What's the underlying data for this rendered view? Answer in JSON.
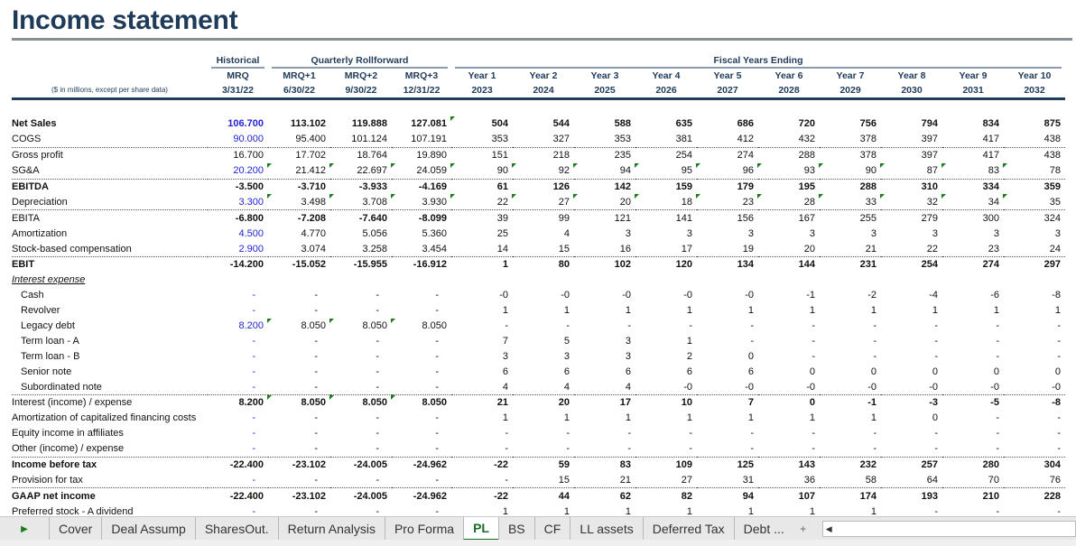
{
  "title": "Income statement",
  "header": {
    "units_note": "($ in millions, except per share data)",
    "groups": {
      "historical": "Historical",
      "quarterly": "Quarterly Rollforward",
      "fiscal": "Fiscal Years Ending"
    },
    "periods": [
      "MRQ",
      "MRQ+1",
      "MRQ+2",
      "MRQ+3",
      "Year 1",
      "Year 2",
      "Year 3",
      "Year 4",
      "Year 5",
      "Year 6",
      "Year 7",
      "Year 8",
      "Year 9",
      "Year 10"
    ],
    "dates": [
      "3/31/22",
      "6/30/22",
      "9/30/22",
      "12/31/22",
      "2023",
      "2024",
      "2025",
      "2026",
      "2027",
      "2028",
      "2029",
      "2030",
      "2031",
      "2032"
    ]
  },
  "rows": [
    {
      "label": "Net Sales",
      "style": "bold",
      "blue_hist": true,
      "flags": [
        3
      ],
      "values": [
        "106.700",
        "113.102",
        "119.888",
        "127.081",
        "504",
        "544",
        "588",
        "635",
        "686",
        "720",
        "756",
        "794",
        "834",
        "875"
      ]
    },
    {
      "label": "COGS",
      "blue_hist": true,
      "values": [
        "90.000",
        "95.400",
        "101.124",
        "107.191",
        "353",
        "327",
        "353",
        "381",
        "412",
        "432",
        "378",
        "397",
        "417",
        "438"
      ]
    },
    {
      "label": "Gross profit",
      "border": true,
      "values": [
        "16.700",
        "17.702",
        "18.764",
        "19.890",
        "151",
        "218",
        "235",
        "254",
        "274",
        "288",
        "378",
        "397",
        "417",
        "438"
      ]
    },
    {
      "label": "SG&A",
      "blue_hist": true,
      "flags": [
        0,
        1,
        2,
        3,
        4,
        5,
        6,
        7,
        8,
        9,
        10,
        11,
        12
      ],
      "values": [
        "20.200",
        "21.412",
        "22.697",
        "24.059",
        "90",
        "92",
        "94",
        "95",
        "96",
        "93",
        "90",
        "87",
        "83",
        "78"
      ]
    },
    {
      "label": "EBITDA",
      "style": "bold",
      "border": true,
      "values": [
        "-3.500",
        "-3.710",
        "-3.933",
        "-4.169",
        "61",
        "126",
        "142",
        "159",
        "179",
        "195",
        "288",
        "310",
        "334",
        "359"
      ]
    },
    {
      "label": "Depreciation",
      "blue_hist": true,
      "flags": [
        0,
        1,
        2,
        3,
        4,
        5,
        6,
        7,
        8,
        9,
        10,
        11,
        12
      ],
      "values": [
        "3.300",
        "3.498",
        "3.708",
        "3.930",
        "22",
        "27",
        "20",
        "18",
        "23",
        "28",
        "33",
        "32",
        "34",
        "35"
      ]
    },
    {
      "label": "EBITA",
      "style": "bold-quarters",
      "border": true,
      "values": [
        "-6.800",
        "-7.208",
        "-7.640",
        "-8.099",
        "39",
        "99",
        "121",
        "141",
        "156",
        "167",
        "255",
        "279",
        "300",
        "324"
      ]
    },
    {
      "label": "Amortization",
      "blue_hist": true,
      "values": [
        "4.500",
        "4.770",
        "5.056",
        "5.360",
        "25",
        "4",
        "3",
        "3",
        "3",
        "3",
        "3",
        "3",
        "3",
        "3"
      ]
    },
    {
      "label": "Stock-based compensation",
      "blue_hist": true,
      "values": [
        "2.900",
        "3.074",
        "3.258",
        "3.454",
        "14",
        "15",
        "16",
        "17",
        "19",
        "20",
        "21",
        "22",
        "23",
        "24"
      ]
    },
    {
      "label": "EBIT",
      "style": "bold",
      "border": true,
      "values": [
        "-14.200",
        "-15.052",
        "-15.955",
        "-16.912",
        "1",
        "80",
        "102",
        "120",
        "134",
        "144",
        "231",
        "254",
        "274",
        "297"
      ]
    },
    {
      "label": "Interest expense",
      "style": "section",
      "values": [
        "",
        "",
        "",
        "",
        "",
        "",
        "",
        "",
        "",
        "",
        "",
        "",
        "",
        ""
      ]
    },
    {
      "label": "Cash",
      "indent": true,
      "blue_hist": true,
      "values": [
        "-",
        "-",
        "-",
        "-",
        "-0",
        "-0",
        "-0",
        "-0",
        "-0",
        "-1",
        "-2",
        "-4",
        "-6",
        "-8"
      ]
    },
    {
      "label": "Revolver",
      "indent": true,
      "blue_hist": true,
      "values": [
        "-",
        "-",
        "-",
        "-",
        "1",
        "1",
        "1",
        "1",
        "1",
        "1",
        "1",
        "1",
        "1",
        "1"
      ]
    },
    {
      "label": "Legacy debt",
      "indent": true,
      "blue_hist": true,
      "flags": [
        0,
        1,
        2
      ],
      "values": [
        "8.200",
        "8.050",
        "8.050",
        "8.050",
        "-",
        "-",
        "-",
        "-",
        "-",
        "-",
        "-",
        "-",
        "-",
        "-"
      ]
    },
    {
      "label": "Term loan - A",
      "indent": true,
      "blue_hist": true,
      "values": [
        "-",
        "-",
        "-",
        "-",
        "7",
        "5",
        "3",
        "1",
        "-",
        "-",
        "-",
        "-",
        "-",
        "-"
      ]
    },
    {
      "label": "Term loan - B",
      "indent": true,
      "blue_hist": true,
      "values": [
        "-",
        "-",
        "-",
        "-",
        "3",
        "3",
        "3",
        "2",
        "0",
        "-",
        "-",
        "-",
        "-",
        "-"
      ]
    },
    {
      "label": "Senior note",
      "indent": true,
      "blue_hist": true,
      "values": [
        "-",
        "-",
        "-",
        "-",
        "6",
        "6",
        "6",
        "6",
        "6",
        "0",
        "0",
        "0",
        "0",
        "0"
      ]
    },
    {
      "label": "Subordinated note",
      "indent": true,
      "blue_hist": true,
      "values": [
        "-",
        "-",
        "-",
        "-",
        "4",
        "4",
        "4",
        "-0",
        "-0",
        "-0",
        "-0",
        "-0",
        "-0",
        "-0"
      ]
    },
    {
      "label": "Interest (income) / expense",
      "style": "bold-values",
      "border": true,
      "flags": [
        0,
        1,
        2
      ],
      "values": [
        "8.200",
        "8.050",
        "8.050",
        "8.050",
        "21",
        "20",
        "17",
        "10",
        "7",
        "0",
        "-1",
        "-3",
        "-5",
        "-8"
      ]
    },
    {
      "label": "Amortization of capitalized financing costs",
      "blue_hist": true,
      "values": [
        "-",
        "-",
        "-",
        "-",
        "1",
        "1",
        "1",
        "1",
        "1",
        "1",
        "1",
        "0",
        "-",
        "-"
      ]
    },
    {
      "label": "Equity income in affiliates",
      "blue_hist": true,
      "values": [
        "-",
        "-",
        "-",
        "-",
        "-",
        "-",
        "-",
        "-",
        "-",
        "-",
        "-",
        "-",
        "-",
        "-"
      ]
    },
    {
      "label": "Other (income) / expense",
      "blue_hist": true,
      "values": [
        "-",
        "-",
        "-",
        "-",
        "-",
        "-",
        "-",
        "-",
        "-",
        "-",
        "-",
        "-",
        "-",
        "-"
      ]
    },
    {
      "label": "Income before tax",
      "style": "bold",
      "border": true,
      "values": [
        "-22.400",
        "-23.102",
        "-24.005",
        "-24.962",
        "-22",
        "59",
        "83",
        "109",
        "125",
        "143",
        "232",
        "257",
        "280",
        "304"
      ]
    },
    {
      "label": "Provision for tax",
      "blue_hist": true,
      "values": [
        "-",
        "-",
        "-",
        "-",
        "-",
        "15",
        "21",
        "27",
        "31",
        "36",
        "58",
        "64",
        "70",
        "76"
      ]
    },
    {
      "label": "GAAP net income",
      "style": "bold",
      "border": true,
      "values": [
        "-22.400",
        "-23.102",
        "-24.005",
        "-24.962",
        "-22",
        "44",
        "62",
        "82",
        "94",
        "107",
        "174",
        "193",
        "210",
        "228"
      ]
    },
    {
      "label": "Preferred stock - A dividend",
      "blue_hist": true,
      "values": [
        "-",
        "-",
        "-",
        "-",
        "1",
        "1",
        "1",
        "1",
        "1",
        "1",
        "1",
        "-",
        "-",
        "-"
      ]
    }
  ],
  "tabs": {
    "items": [
      "Cover",
      "Deal Assump",
      "SharesOut.",
      "Return Analysis",
      "Pro Forma",
      "PL",
      "BS",
      "CF",
      "LL assets",
      "Deferred Tax",
      "Debt ..."
    ],
    "active": "PL",
    "add": "+"
  },
  "colors": {
    "title": "#1f3b5a",
    "input_blue": "#2424d6",
    "flag_green": "#1a7f1a",
    "active_tab": "#1a6b2a"
  }
}
